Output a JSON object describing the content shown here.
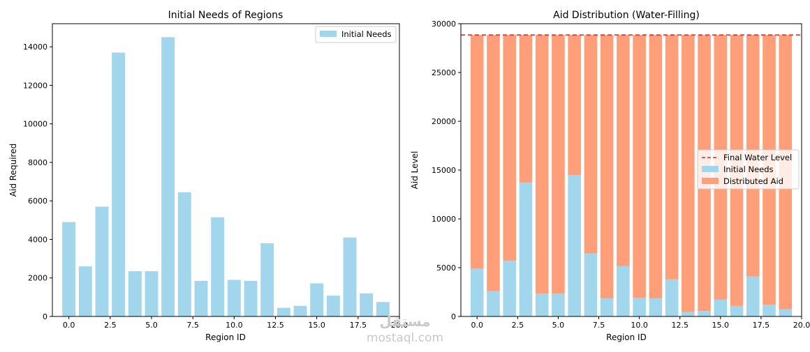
{
  "chart_data": [
    {
      "type": "bar",
      "title": "Initial Needs of Regions",
      "xlabel": "Region ID",
      "ylabel": "Aid Required",
      "xlim": [
        -1,
        20
      ],
      "ylim": [
        0,
        15200
      ],
      "xticks": [
        0,
        2.5,
        5,
        7.5,
        10,
        12.5,
        15,
        17.5,
        20
      ],
      "xtick_labels": [
        "0.0",
        "2.5",
        "5.0",
        "7.5",
        "10.0",
        "12.5",
        "15.0",
        "17.5",
        "20.0"
      ],
      "yticks": [
        0,
        2000,
        4000,
        6000,
        8000,
        10000,
        12000,
        14000
      ],
      "ytick_labels": [
        "0",
        "2000",
        "4000",
        "6000",
        "8000",
        "10000",
        "12000",
        "14000"
      ],
      "legend_position": "upper right",
      "x": [
        0,
        1,
        2,
        3,
        4,
        5,
        6,
        7,
        8,
        9,
        10,
        11,
        12,
        13,
        14,
        15,
        16,
        17,
        18,
        19
      ],
      "series": [
        {
          "name": "Initial Needs",
          "color": "#a1d6ed",
          "values": [
            4900,
            2600,
            5700,
            13700,
            2350,
            2350,
            14500,
            6450,
            1850,
            5150,
            1900,
            1850,
            3800,
            450,
            550,
            1720,
            1080,
            4100,
            1200,
            750
          ]
        }
      ]
    },
    {
      "type": "bar",
      "stacked": true,
      "title": "Aid Distribution (Water-Filling)",
      "xlabel": "Region ID",
      "ylabel": "Aid Level",
      "xlim": [
        -1,
        20
      ],
      "ylim": [
        0,
        30000
      ],
      "xticks": [
        0,
        2.5,
        5,
        7.5,
        10,
        12.5,
        15,
        17.5,
        20
      ],
      "xtick_labels": [
        "0.0",
        "2.5",
        "5.0",
        "7.5",
        "10.0",
        "12.5",
        "15.0",
        "17.5",
        "20.0"
      ],
      "yticks": [
        0,
        5000,
        10000,
        15000,
        20000,
        25000,
        30000
      ],
      "ytick_labels": [
        "0",
        "5000",
        "10000",
        "15000",
        "20000",
        "25000",
        "30000"
      ],
      "legend_position": "center right",
      "water_level": 28850,
      "water_level_label": "Final Water Level",
      "water_level_color": "#d62728",
      "x": [
        0,
        1,
        2,
        3,
        4,
        5,
        6,
        7,
        8,
        9,
        10,
        11,
        12,
        13,
        14,
        15,
        16,
        17,
        18,
        19
      ],
      "series": [
        {
          "name": "Initial Needs",
          "color": "#a1d6ed",
          "values": [
            4900,
            2600,
            5700,
            13700,
            2350,
            2350,
            14500,
            6450,
            1850,
            5150,
            1900,
            1850,
            3800,
            450,
            550,
            1720,
            1080,
            4100,
            1200,
            750
          ]
        },
        {
          "name": "Distributed Aid",
          "color": "#ff9f7a",
          "values": [
            23950,
            26250,
            23150,
            15150,
            26500,
            26500,
            14350,
            22400,
            27000,
            23700,
            26950,
            27000,
            25050,
            28400,
            28300,
            27130,
            27770,
            24750,
            27650,
            28100
          ]
        }
      ]
    }
  ],
  "watermark": {
    "brand": "مستقل",
    "url": "mostaql.com"
  }
}
